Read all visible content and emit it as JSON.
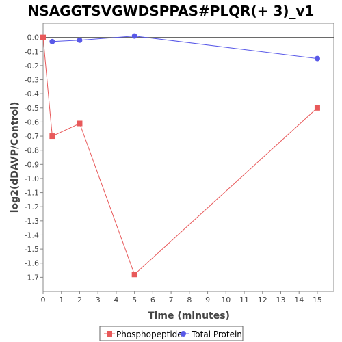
{
  "chart_data": {
    "type": "line",
    "title": "NSAGGTSVGWDSPPAS#PLQR(+ 3)_v1",
    "xlabel": "Time (minutes)",
    "ylabel": "log2(dDAVP/Control)",
    "xlim": [
      0,
      15.9
    ],
    "ylim": [
      -1.8,
      0.1
    ],
    "xticks": [
      0,
      1,
      2,
      3,
      4,
      5,
      6,
      7,
      8,
      9,
      10,
      11,
      12,
      13,
      14,
      15
    ],
    "yticks": [
      0.0,
      -0.1,
      -0.2,
      -0.3,
      -0.4,
      -0.5,
      -0.6,
      -0.7,
      -0.8,
      -0.9,
      -1.0,
      -1.1,
      -1.2,
      -1.3,
      -1.4,
      -1.5,
      -1.6,
      -1.7
    ],
    "ytick_labels": [
      "0.0",
      "-0.1",
      "-0.2",
      "-0.3",
      "-0.4",
      "-0.5",
      "-0.6",
      "-0.7",
      "-0.8",
      "-0.9",
      "-1.0",
      "-1.1",
      "-1.2",
      "-1.3",
      "-1.4",
      "-1.5",
      "-1.6",
      "-1.7"
    ],
    "grid": false,
    "legend_position": "bottom",
    "series": [
      {
        "name": "Phosphopeptide",
        "color": "#e8595a",
        "marker": "square",
        "x": [
          0,
          0.5,
          2,
          5,
          15
        ],
        "y": [
          0.0,
          -0.7,
          -0.61,
          -1.68,
          -0.5
        ]
      },
      {
        "name": "Total Protein",
        "color": "#5959e8",
        "marker": "circle",
        "x": [
          0.5,
          2,
          5,
          15
        ],
        "y": [
          -0.03,
          -0.02,
          0.01,
          -0.15
        ]
      }
    ]
  }
}
